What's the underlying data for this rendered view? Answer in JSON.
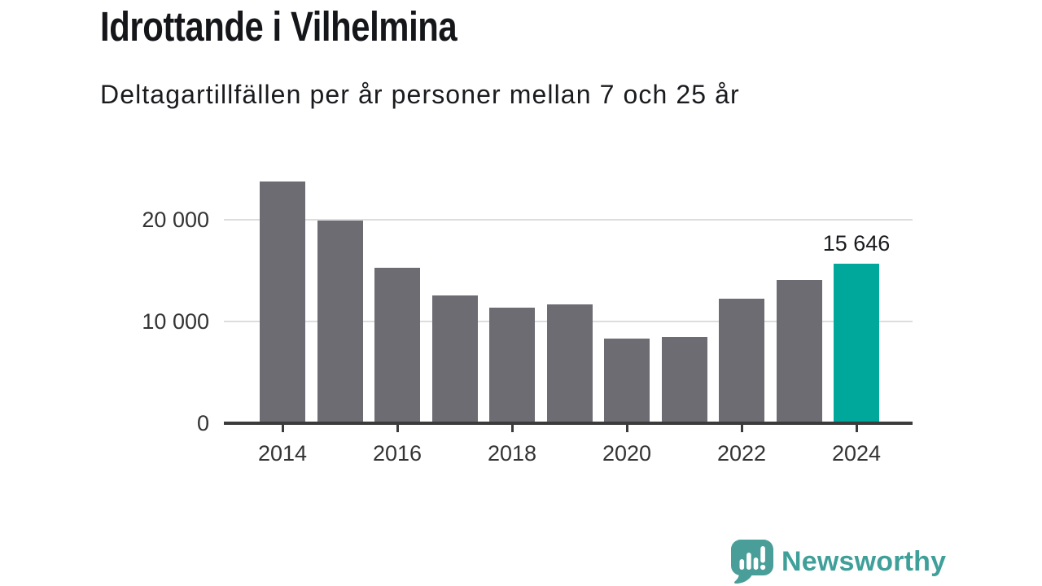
{
  "header": {
    "title": "Idrottande i Vilhelmina",
    "subtitle": "Deltagartillfällen per år personer mellan 7 och 25 år"
  },
  "chart_data": {
    "type": "bar",
    "title": "Idrottande i Vilhelmina",
    "subtitle": "Deltagartillfällen per år personer mellan 7 och 25 år",
    "categories": [
      "2014",
      "2015",
      "2016",
      "2017",
      "2018",
      "2019",
      "2020",
      "2021",
      "2022",
      "2023",
      "2024"
    ],
    "values": [
      23800,
      19950,
      15300,
      12600,
      11400,
      11700,
      8300,
      8500,
      12250,
      14100,
      15646
    ],
    "highlight": {
      "index": 10,
      "label": "15 646",
      "color": "#00a79b"
    },
    "bar_color": "#6d6c72",
    "axis_color": "#3b3b3b",
    "grid_color": "#dddddd",
    "label_color": "#333333",
    "ylim": [
      0,
      25000
    ],
    "yticks": [
      {
        "value": 0,
        "label": "0"
      },
      {
        "value": 10000,
        "label": "10 000"
      },
      {
        "value": 20000,
        "label": "20 000"
      }
    ],
    "xticks": [
      "2014",
      "2016",
      "2018",
      "2020",
      "2022",
      "2024"
    ],
    "grid": true,
    "legend": "none"
  },
  "footer": {
    "brand": "Newsworthy",
    "brand_color": "#3f9f99",
    "logo_icon": "bar-chart-speech-bubble-icon",
    "logo_bubble_color": "#4a9e99"
  }
}
